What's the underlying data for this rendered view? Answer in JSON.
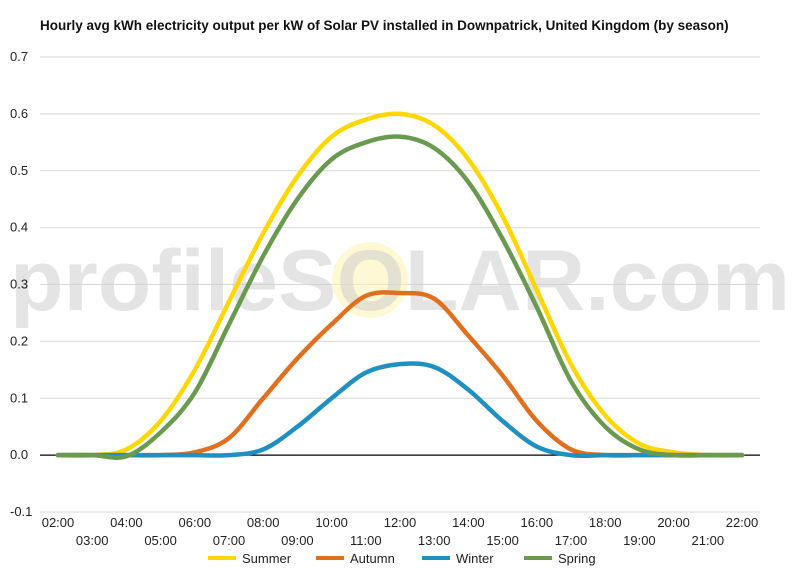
{
  "chart_data": {
    "type": "line",
    "title": "Hourly avg kWh electricity output per kW of Solar PV installed in Downpatrick, United Kingdom (by season)",
    "xlabel": "",
    "ylabel": "",
    "ylim": [
      -0.1,
      0.7
    ],
    "yticks": [
      "-0.1",
      "0.0",
      "0.1",
      "0.2",
      "0.3",
      "0.4",
      "0.5",
      "0.6",
      "0.7"
    ],
    "x": [
      "02:00",
      "03:00",
      "04:00",
      "05:00",
      "06:00",
      "07:00",
      "08:00",
      "09:00",
      "10:00",
      "11:00",
      "12:00",
      "13:00",
      "14:00",
      "15:00",
      "16:00",
      "17:00",
      "18:00",
      "19:00",
      "20:00",
      "21:00",
      "22:00"
    ],
    "grid": true,
    "legend_position": "bottom",
    "watermark": "profileSOLAR.com",
    "series": [
      {
        "name": "Summer",
        "color": "#FFD700",
        "values": [
          0.0,
          0.0,
          0.01,
          0.06,
          0.15,
          0.27,
          0.39,
          0.49,
          0.56,
          0.59,
          0.6,
          0.58,
          0.52,
          0.42,
          0.29,
          0.16,
          0.07,
          0.02,
          0.005,
          0.0,
          0.0
        ]
      },
      {
        "name": "Autumn",
        "color": "#E07020",
        "values": [
          0.0,
          0.0,
          0.0,
          0.0,
          0.005,
          0.03,
          0.1,
          0.17,
          0.23,
          0.28,
          0.285,
          0.275,
          0.21,
          0.14,
          0.06,
          0.01,
          0.0,
          0.0,
          0.0,
          0.0,
          0.0
        ]
      },
      {
        "name": "Winter",
        "color": "#2090C0",
        "values": [
          0.0,
          0.0,
          0.0,
          0.0,
          0.0,
          0.0,
          0.01,
          0.05,
          0.1,
          0.145,
          0.16,
          0.155,
          0.115,
          0.06,
          0.015,
          0.0,
          0.0,
          0.0,
          0.0,
          0.0,
          0.0
        ]
      },
      {
        "name": "Spring",
        "color": "#6A9A50",
        "values": [
          0.0,
          0.0,
          -0.002,
          0.04,
          0.11,
          0.23,
          0.35,
          0.45,
          0.52,
          0.55,
          0.56,
          0.54,
          0.48,
          0.38,
          0.26,
          0.13,
          0.05,
          0.01,
          0.0,
          0.0,
          0.0
        ]
      }
    ]
  }
}
